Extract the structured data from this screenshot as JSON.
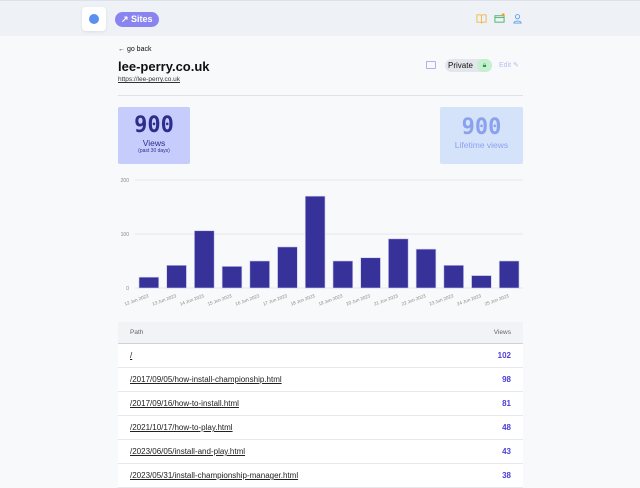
{
  "nav": {
    "sites_label": "Sites"
  },
  "header": {
    "back": "← go back",
    "title": "lee-perry.co.uk",
    "url": "https://lee-perry.co.uk",
    "private": "Private",
    "edit": "Edit"
  },
  "stats": [
    {
      "value": "900",
      "label": "Views",
      "sub": "(past 30 days)"
    },
    {
      "value": "900",
      "label": "Lifetime views"
    }
  ],
  "chart_data": {
    "type": "bar",
    "categories": [
      "12 Jun 2023",
      "13 Jun 2023",
      "14 Jun 2023",
      "15 Jun 2023",
      "16 Jun 2023",
      "17 Jun 2023",
      "18 Jun 2023",
      "19 Jun 2023",
      "20 Jun 2023",
      "21 Jun 2023",
      "22 Jun 2023",
      "23 Jun 2023",
      "24 Jun 2023",
      "25 Jun 2023"
    ],
    "values": [
      20,
      42,
      106,
      40,
      50,
      76,
      170,
      50,
      56,
      91,
      72,
      42,
      23,
      50
    ],
    "yticks": [
      0,
      100,
      200
    ],
    "ylim": [
      0,
      200
    ],
    "color": "#37319a"
  },
  "table": {
    "headers": [
      "Path",
      "Views"
    ],
    "rows": [
      {
        "path": "/",
        "views": "102"
      },
      {
        "path": "/2017/09/05/how-install-championship.html",
        "views": "98"
      },
      {
        "path": "/2017/09/16/how-to-install.html",
        "views": "81"
      },
      {
        "path": "/2021/10/17/how-to-play.html",
        "views": "48"
      },
      {
        "path": "/2023/06/05/install-and-play.html",
        "views": "43"
      },
      {
        "path": "/2023/05/31/install-championship-manager.html",
        "views": "38"
      }
    ]
  }
}
